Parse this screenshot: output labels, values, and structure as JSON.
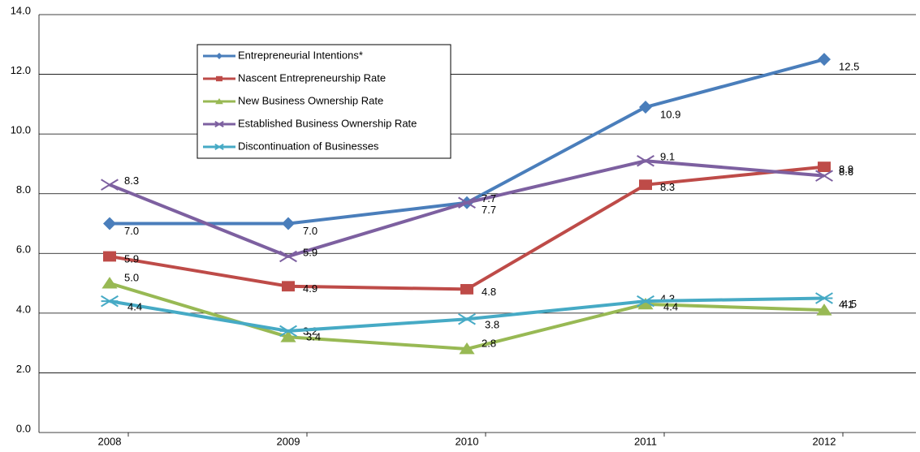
{
  "chart_data": {
    "type": "line",
    "categories": [
      "2008",
      "2009",
      "2010",
      "2011",
      "2012"
    ],
    "ylim": [
      0,
      14
    ],
    "yticks": [
      {
        "value": 0,
        "label": "0.0"
      },
      {
        "value": 2,
        "label": "2.0"
      },
      {
        "value": 4,
        "label": "4.0"
      },
      {
        "value": 6,
        "label": "6.0"
      },
      {
        "value": 8,
        "label": "8.0"
      },
      {
        "value": 10,
        "label": "10.0"
      },
      {
        "value": 12,
        "label": "12.0"
      },
      {
        "value": 14,
        "label": "14.0"
      }
    ],
    "grid": true,
    "legend": "upper-left",
    "series": [
      {
        "name": "Entrepreneurial Intentions*",
        "color": "#4a7ebb",
        "marker": "diamond",
        "values": [
          7.0,
          7.0,
          7.7,
          10.9,
          12.5
        ],
        "value_labels": [
          "7.0",
          "7.0",
          "7.7",
          "10.9",
          "12.5"
        ]
      },
      {
        "name": "Nascent Entrepreneurship Rate",
        "color": "#be4b48",
        "marker": "square",
        "values": [
          5.9,
          4.9,
          4.8,
          8.3,
          8.9
        ],
        "value_labels": [
          "5.9",
          "4.9",
          "4.8",
          "8.3",
          "8.9"
        ]
      },
      {
        "name": "New Business Ownership Rate",
        "color": "#98b954",
        "marker": "triangle",
        "values": [
          5.0,
          3.2,
          2.8,
          4.3,
          4.1
        ],
        "value_labels": [
          "5.0",
          "3.2",
          "2.8",
          "4.3",
          "4.1"
        ]
      },
      {
        "name": "Established Business Ownership Rate",
        "color": "#7d60a0",
        "marker": "x",
        "values": [
          8.3,
          5.9,
          7.7,
          9.1,
          8.6
        ],
        "value_labels": [
          "8.3",
          "5.9",
          "7.7",
          "9.1",
          "8.6"
        ]
      },
      {
        "name": "Discontinuation of Businesses",
        "color": "#46aac5",
        "marker": "star",
        "values": [
          4.4,
          3.4,
          3.8,
          4.4,
          4.5
        ],
        "value_labels": [
          "4.4",
          "3.4",
          "3.8",
          "4.4",
          "4.5"
        ]
      }
    ]
  }
}
